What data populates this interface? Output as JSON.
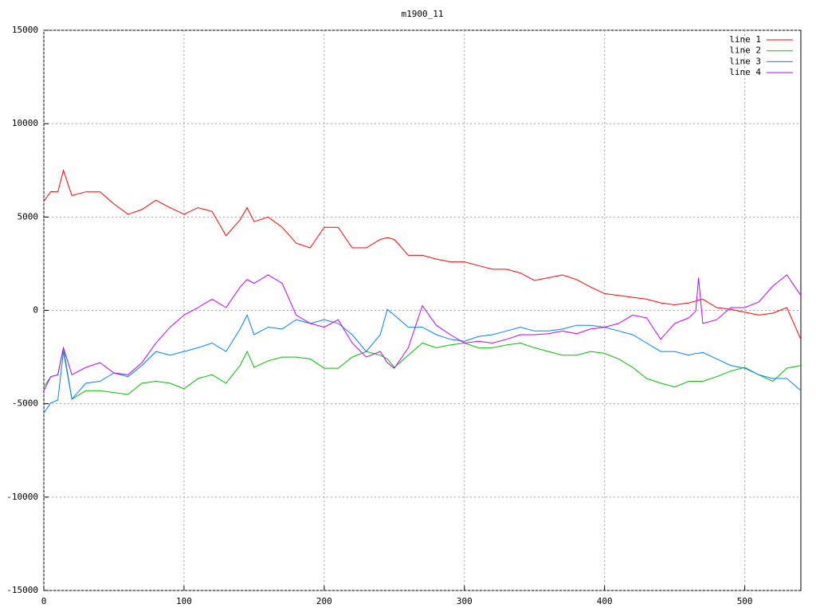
{
  "chart_data": {
    "type": "line",
    "title": "m1900_11",
    "x": [
      0,
      5,
      10,
      14,
      20,
      30,
      40,
      50,
      60,
      70,
      80,
      90,
      100,
      110,
      120,
      130,
      140,
      145,
      150,
      160,
      170,
      180,
      190,
      200,
      210,
      220,
      230,
      240,
      245,
      250,
      260,
      270,
      280,
      290,
      300,
      310,
      320,
      330,
      340,
      350,
      360,
      370,
      380,
      390,
      400,
      410,
      420,
      430,
      440,
      450,
      460,
      465,
      467,
      470,
      480,
      490,
      500,
      510,
      520,
      530,
      540
    ],
    "series": [
      {
        "name": "line 1",
        "color": "#ff0000",
        "values": [
          5850,
          6360,
          6350,
          7500,
          6150,
          6350,
          6350,
          5700,
          5150,
          5400,
          5900,
          5500,
          5150,
          5500,
          5300,
          4000,
          4850,
          5500,
          4750,
          5000,
          4450,
          3600,
          3350,
          4450,
          4450,
          3350,
          3350,
          3800,
          3900,
          3800,
          2950,
          2950,
          2750,
          2600,
          2600,
          2400,
          2200,
          2200,
          2000,
          1600,
          1750,
          1900,
          1650,
          1250,
          900,
          800,
          700,
          600,
          400,
          300,
          400,
          500,
          550,
          600,
          150,
          50,
          -100,
          -250,
          -150,
          150,
          -1550
        ]
      },
      {
        "name": "line 2",
        "color": "#00c000",
        "values": [
          -4100,
          -3550,
          -3450,
          -2000,
          -4750,
          -4300,
          -4300,
          -4400,
          -4500,
          -3900,
          -3800,
          -3900,
          -4200,
          -3650,
          -3450,
          -3900,
          -2950,
          -2200,
          -3050,
          -2700,
          -2500,
          -2500,
          -2600,
          -3100,
          -3100,
          -2500,
          -2200,
          -2400,
          -2600,
          -3050,
          -2400,
          -1750,
          -2000,
          -1850,
          -1750,
          -2000,
          -2000,
          -1850,
          -1750,
          -2000,
          -2200,
          -2400,
          -2400,
          -2200,
          -2300,
          -2600,
          -3050,
          -3650,
          -3900,
          -4100,
          -3800,
          -3800,
          -3800,
          -3800,
          -3550,
          -3250,
          -3050,
          -3450,
          -3800,
          -3100,
          -2950
        ]
      },
      {
        "name": "line 3",
        "color": "#0080ff",
        "values": [
          -5500,
          -4950,
          -4800,
          -2200,
          -4750,
          -3900,
          -3800,
          -3350,
          -3550,
          -2950,
          -2200,
          -2400,
          -2200,
          -2000,
          -1750,
          -2200,
          -1000,
          -250,
          -1300,
          -900,
          -1000,
          -500,
          -700,
          -500,
          -700,
          -1300,
          -2200,
          -1300,
          50,
          -250,
          -900,
          -900,
          -1300,
          -1550,
          -1650,
          -1400,
          -1300,
          -1100,
          -900,
          -1100,
          -1100,
          -1000,
          -800,
          -800,
          -900,
          -1100,
          -1300,
          -1750,
          -2200,
          -2200,
          -2400,
          -2300,
          -2300,
          -2250,
          -2600,
          -2950,
          -3100,
          -3450,
          -3650,
          -3650,
          -4300
        ]
      },
      {
        "name": "line 4",
        "color": "#c000ff",
        "values": [
          -4300,
          -3550,
          -3450,
          -2000,
          -3450,
          -3050,
          -2800,
          -3350,
          -3450,
          -2800,
          -1750,
          -900,
          -250,
          150,
          600,
          150,
          1250,
          1650,
          1450,
          1900,
          1450,
          -250,
          -700,
          -900,
          -500,
          -1750,
          -2500,
          -2200,
          -2800,
          -3100,
          -2000,
          250,
          -800,
          -1300,
          -1750,
          -1650,
          -1750,
          -1550,
          -1300,
          -1300,
          -1250,
          -1100,
          -1250,
          -1000,
          -900,
          -700,
          -250,
          -400,
          -1550,
          -700,
          -400,
          -50,
          1750,
          -700,
          -500,
          150,
          150,
          450,
          1300,
          1900,
          800
        ]
      }
    ],
    "xlim": [
      0,
      540
    ],
    "xticks": [
      0,
      100,
      200,
      300,
      400,
      500
    ],
    "ylim": [
      -15000,
      15000
    ],
    "yticks": [
      -15000,
      -10000,
      -5000,
      0,
      5000,
      10000,
      15000
    ],
    "grid": true,
    "legend": "top-right"
  }
}
